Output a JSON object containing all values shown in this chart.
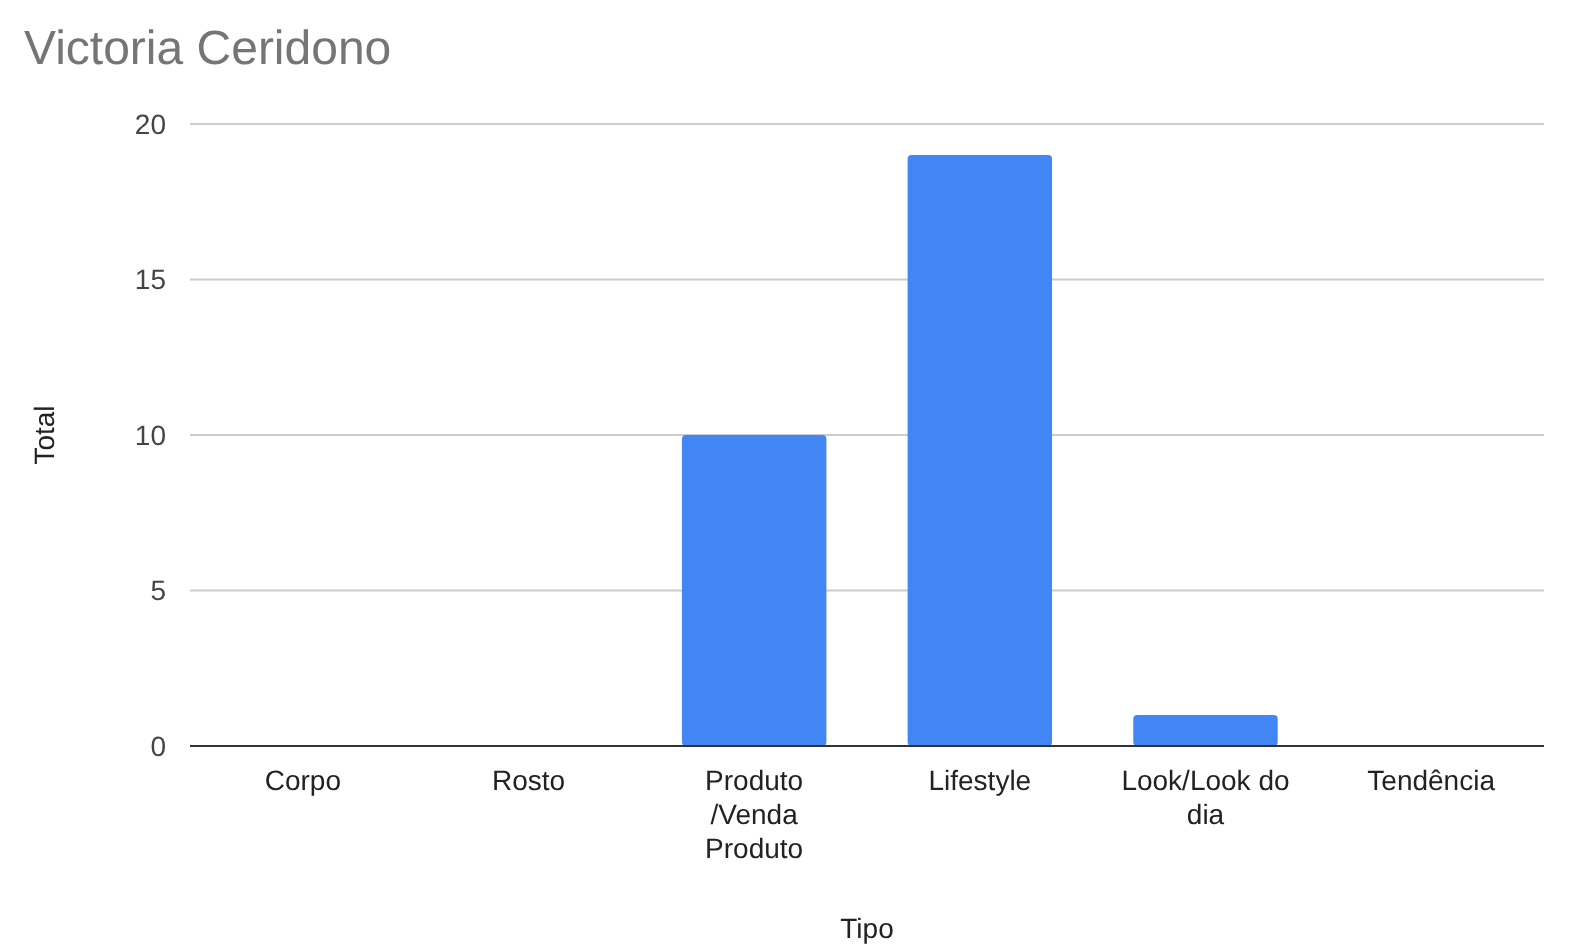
{
  "chart_data": {
    "type": "bar",
    "title": "Victoria Ceridono",
    "xlabel": "Tipo",
    "ylabel": "Total",
    "categories": [
      "Corpo",
      "Rosto",
      "Produto /Venda Produto",
      "Lifestyle",
      "Look/Look do dia",
      "Tendência"
    ],
    "values": [
      0,
      0,
      10,
      19,
      1,
      0
    ],
    "color": "#4285f4",
    "ylim": [
      0,
      20
    ],
    "yticks": [
      0,
      5,
      10,
      15,
      20
    ],
    "grid": "y"
  }
}
